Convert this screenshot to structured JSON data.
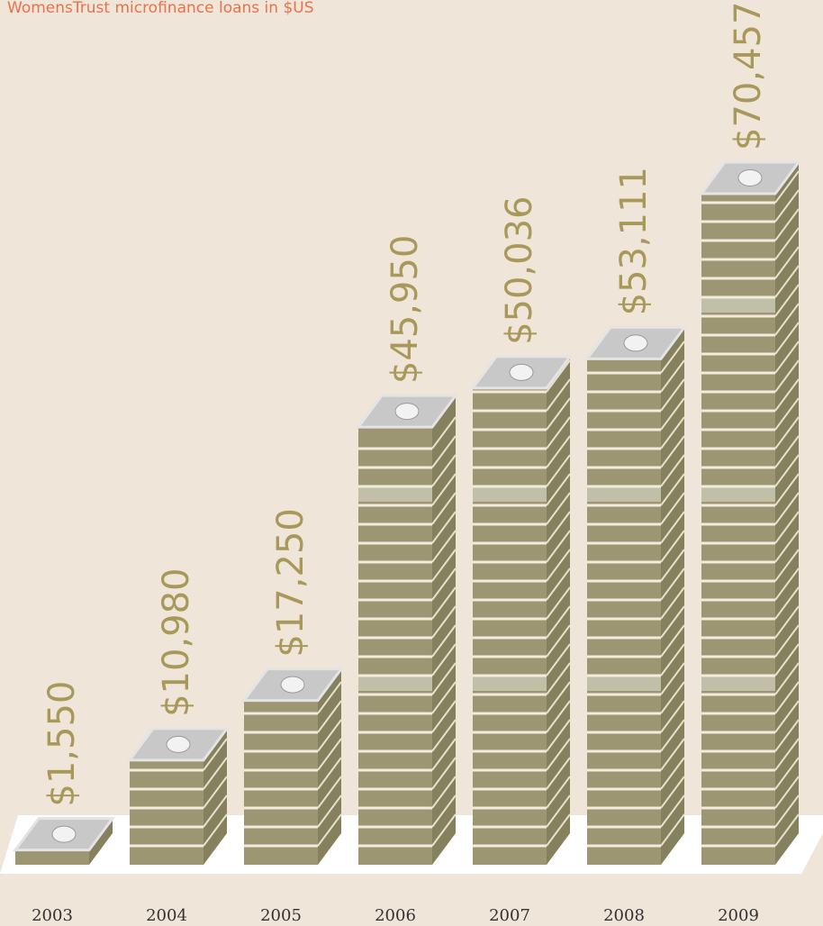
{
  "chart_data": {
    "type": "bar",
    "title": "WomensTrust microfinance loans in $US",
    "categories": [
      "2003",
      "2004",
      "2005",
      "2006",
      "2007",
      "2008",
      "2009"
    ],
    "values": [
      1550,
      10980,
      17250,
      45950,
      50036,
      53111,
      70457
    ],
    "value_labels": [
      "$1,550",
      "$10,980",
      "$17,250",
      "$45,950",
      "$50,036",
      "$53,111",
      "$70,457"
    ],
    "color": "#9c9672"
  }
}
